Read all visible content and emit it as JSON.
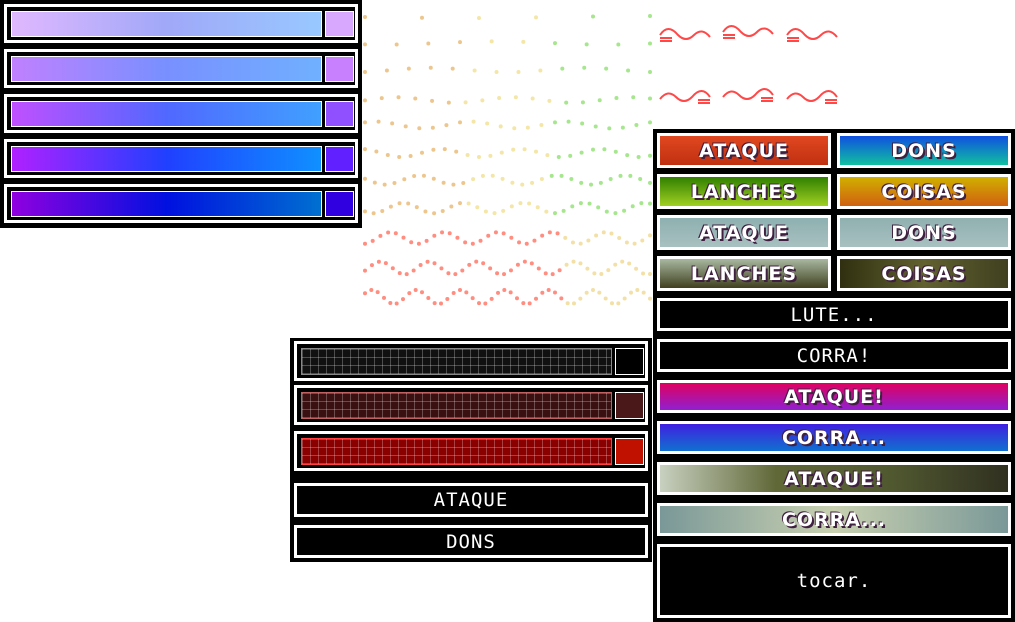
{
  "gauges": [
    {
      "colors": [
        "#e0b8ff",
        "#a0a8f8",
        "#98c8ff"
      ],
      "swatch": "#d8a8ff"
    },
    {
      "colors": [
        "#c080ff",
        "#7890ff",
        "#70b0ff"
      ],
      "swatch": "#c880ff"
    },
    {
      "colors": [
        "#c050ff",
        "#5068ff",
        "#40a0ff"
      ],
      "swatch": "#9050ff"
    },
    {
      "colors": [
        "#b020ff",
        "#2040ff",
        "#1090ff"
      ],
      "swatch": "#6020ff"
    },
    {
      "colors": [
        "#9000e0",
        "#0010e0",
        "#0070d0"
      ],
      "swatch": "#3000e0"
    }
  ],
  "hp_bars": [
    {
      "fill": "#111111",
      "swatch": "#000000",
      "grid": "#888888"
    },
    {
      "fill": "#3a1010",
      "swatch": "#4a1818",
      "grid": "#c06060"
    },
    {
      "fill": "#8a0000",
      "swatch": "#c01000",
      "grid": "#ff4040"
    }
  ],
  "menu_dark": [
    {
      "label": "ATAQUE"
    },
    {
      "label": "DONS"
    }
  ],
  "menu_grid": [
    {
      "label": "ATAQUE",
      "bg": "linear-gradient(180deg,#e04820,#c03010)"
    },
    {
      "label": "DONS",
      "bg": "linear-gradient(180deg,#1050e0,#10c0a0)"
    },
    {
      "label": "LANCHES",
      "bg": "linear-gradient(180deg,#308000,#a0d020)"
    },
    {
      "label": "COISAS",
      "bg": "linear-gradient(180deg,#d0b000,#d06010)"
    },
    {
      "label": "ATAQUE",
      "bg": "linear-gradient(180deg,#8eb0b0,#a8c0c0)"
    },
    {
      "label": "DONS",
      "bg": "linear-gradient(180deg,#90b0b0,#a8c0c0)"
    },
    {
      "label": "LANCHES",
      "bg": "linear-gradient(180deg,#a8b8a0,#404020)"
    },
    {
      "label": "COISAS",
      "bg": "linear-gradient(90deg,#303010,#606030,#404020)"
    }
  ],
  "menu_wide": [
    {
      "label": "LUTE...",
      "bg": "#000000",
      "dark": true
    },
    {
      "label": "CORRA!",
      "bg": "#000000",
      "dark": true
    },
    {
      "label": "ATAQUE!",
      "bg": "linear-gradient(180deg,#e00060,#9020d0)",
      "dark": false
    },
    {
      "label": "CORRA...",
      "bg": "linear-gradient(180deg,#4020e0,#1070d0)",
      "dark": false
    },
    {
      "label": "ATAQUE!",
      "bg": "linear-gradient(90deg,#c8d0c0,#606838,#505830,#303020)",
      "dark": false
    },
    {
      "label": "CORRA...",
      "bg": "linear-gradient(90deg,#7a9898,#c8d0b0,#7a9898)",
      "dark": false
    },
    {
      "label": "tocar.",
      "bg": "#000000",
      "dark": true
    }
  ],
  "colors": {
    "squiggle": "#ff4848",
    "dots_warm": [
      "#e8b870",
      "#f0e090",
      "#90e070"
    ],
    "dots_red": [
      "#ff7060",
      "#f0d890"
    ]
  }
}
